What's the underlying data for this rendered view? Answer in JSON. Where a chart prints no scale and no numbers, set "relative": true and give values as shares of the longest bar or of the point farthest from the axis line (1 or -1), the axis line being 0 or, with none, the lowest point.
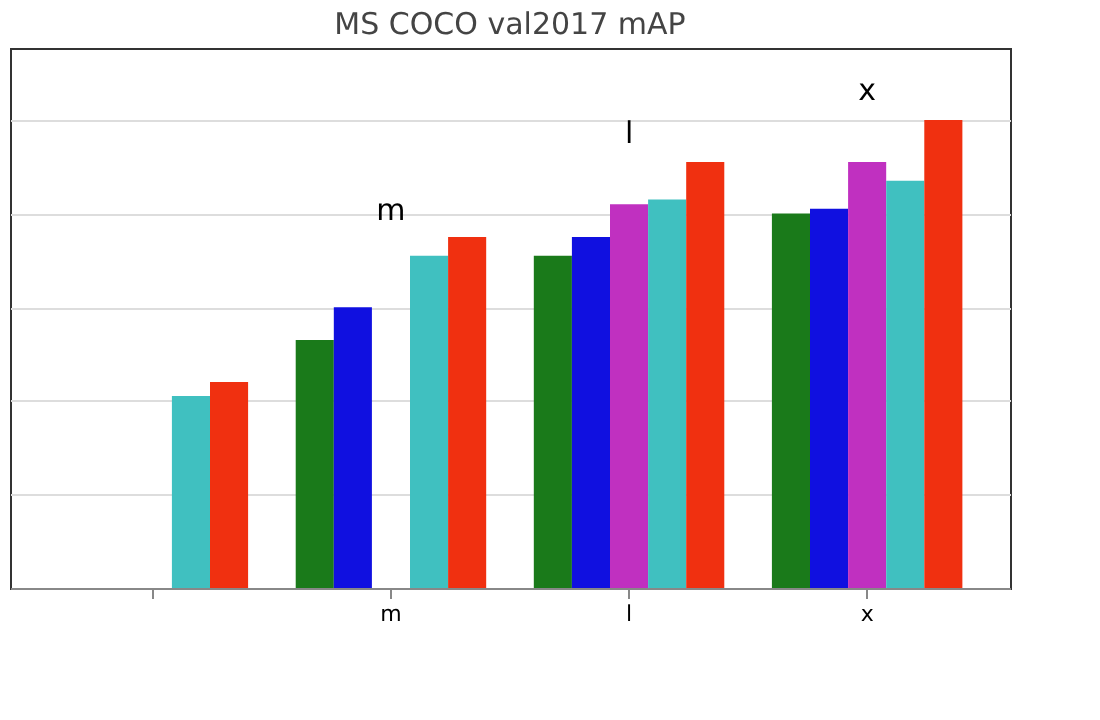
{
  "chart_data": {
    "type": "bar",
    "title": "MS COCO val2017 mAP",
    "relative": true,
    "categories": [
      null,
      "m",
      "l",
      "x"
    ],
    "series": [
      {
        "color": "#1a7a1a",
        "values": [
          null,
          0.53,
          0.71,
          0.8
        ]
      },
      {
        "color": "#1010e0",
        "values": [
          null,
          0.6,
          0.75,
          0.81
        ]
      },
      {
        "color": "#c030c0",
        "values": [
          null,
          null,
          0.82,
          0.91
        ]
      },
      {
        "color": "#40c0c0",
        "values": [
          0.41,
          0.71,
          0.83,
          0.87
        ]
      },
      {
        "color": "#f03010",
        "values": [
          0.44,
          0.75,
          0.91,
          1
        ]
      }
    ],
    "annotations": [
      "m",
      "l",
      "x"
    ],
    "grid": "y",
    "legend": false
  }
}
